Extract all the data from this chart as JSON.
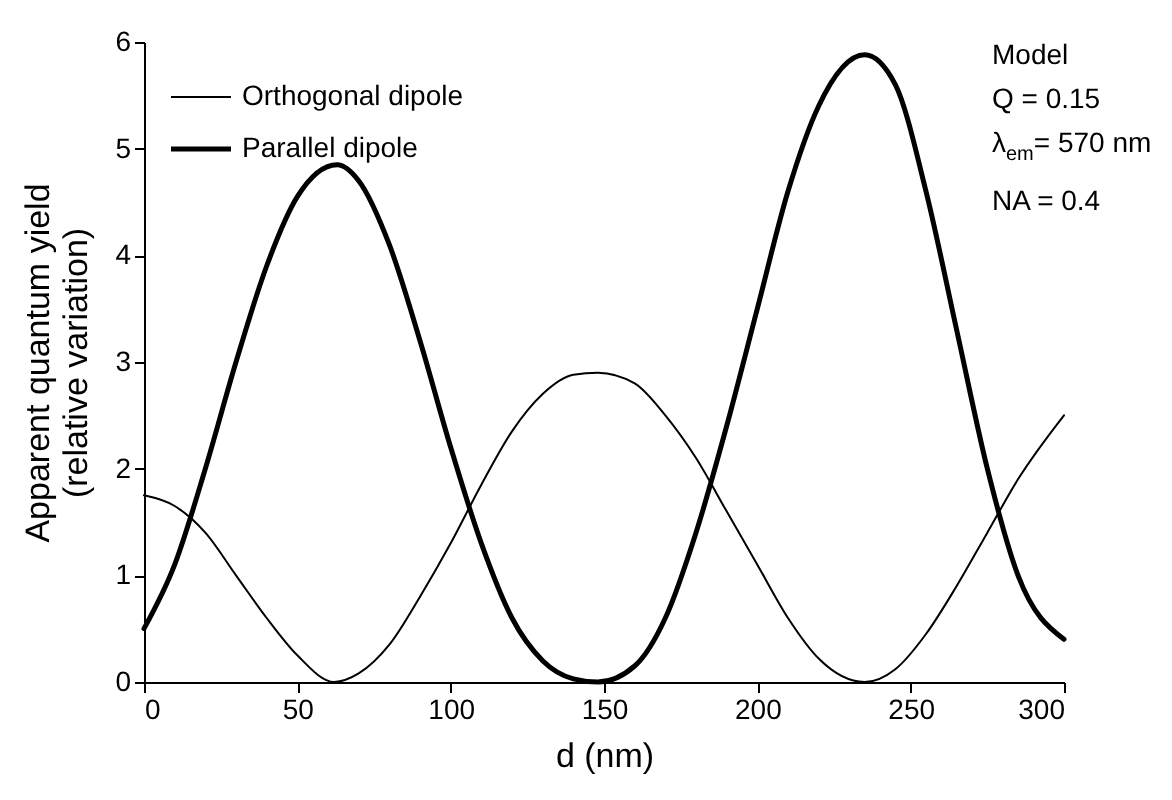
{
  "chart_data": {
    "type": "line",
    "xlabel": "d (nm)",
    "ylabel": "Apparent quantum yield\n(relative variation)",
    "xlim": [
      0,
      300
    ],
    "xticks": [
      0,
      50,
      100,
      150,
      200,
      250,
      300
    ],
    "ylim": [
      0,
      6
    ],
    "yticks": [
      0,
      1,
      2,
      3,
      4,
      5,
      6
    ],
    "grid": false,
    "legend": "top left",
    "marker": "none",
    "line_style": "solid",
    "annotations": [
      "Model",
      "Q = 0.15",
      "λ$_{em}$= 570 nm",
      "NA = 0.4"
    ],
    "series": [
      {
        "name": "Orthogonal dipole",
        "color": "#000000",
        "x": [
          0,
          10,
          20,
          30,
          40,
          50,
          62,
          70,
          80,
          90,
          100,
          110,
          120,
          130,
          140,
          148,
          160,
          170,
          180,
          190,
          200,
          210,
          220,
          235,
          245,
          255,
          265,
          275,
          285,
          300
        ],
        "values": [
          1.75,
          1.65,
          1.4,
          1.0,
          0.6,
          0.25,
          0.0,
          0.08,
          0.35,
          0.8,
          1.3,
          1.85,
          2.35,
          2.7,
          2.88,
          2.9,
          2.8,
          2.5,
          2.1,
          1.6,
          1.1,
          0.6,
          0.22,
          0.0,
          0.12,
          0.45,
          0.9,
          1.4,
          1.9,
          2.5
        ]
      },
      {
        "name": "Parallel dipole",
        "color": "#000000",
        "x": [
          0,
          10,
          20,
          30,
          40,
          50,
          63,
          70,
          80,
          90,
          100,
          110,
          120,
          130,
          140,
          148,
          160,
          170,
          180,
          190,
          200,
          210,
          220,
          235,
          245,
          255,
          265,
          275,
          285,
          300
        ],
        "values": [
          0.5,
          1.1,
          2.0,
          3.0,
          3.9,
          4.55,
          4.85,
          4.7,
          4.1,
          3.2,
          2.2,
          1.3,
          0.6,
          0.2,
          0.03,
          0.0,
          0.15,
          0.6,
          1.4,
          2.4,
          3.5,
          4.6,
          5.4,
          5.88,
          5.6,
          4.6,
          3.3,
          2.0,
          1.0,
          0.4
        ]
      }
    ]
  }
}
